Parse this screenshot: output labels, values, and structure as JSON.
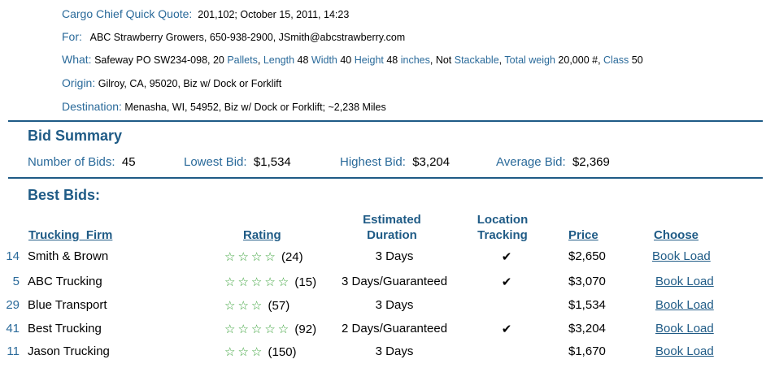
{
  "quote": {
    "label": "Cargo Chief Quick Quote:",
    "value": "201,102;  October 15, 2011, 14:23"
  },
  "for": {
    "label": "For:",
    "value": "ABC Strawberry Growers,  650-938-2900,  JSmith@abcstrawberry.com"
  },
  "what": {
    "label": "What:",
    "parts": [
      {
        "t": "Safeway  PO SW234-098, 20 ",
        "kw": false
      },
      {
        "t": "Pallets",
        "kw": true
      },
      {
        "t": ", ",
        "kw": false
      },
      {
        "t": "Length",
        "kw": true
      },
      {
        "t": " 48 ",
        "kw": false
      },
      {
        "t": "Width",
        "kw": true
      },
      {
        "t": " 40 ",
        "kw": false
      },
      {
        "t": "Height",
        "kw": true
      },
      {
        "t": " 48 ",
        "kw": false
      },
      {
        "t": "inches",
        "kw": true
      },
      {
        "t": ", Not ",
        "kw": false
      },
      {
        "t": "Stackable",
        "kw": true
      },
      {
        "t": ", ",
        "kw": false
      },
      {
        "t": "Total weigh",
        "kw": true
      },
      {
        "t": " 20,000 #, ",
        "kw": false
      },
      {
        "t": "Class",
        "kw": true
      },
      {
        "t": " 50",
        "kw": false
      }
    ]
  },
  "origin": {
    "label": "Origin:",
    "value": "Gilroy,  CA, 95020,  Biz w/ Dock or Forklift"
  },
  "destination": {
    "label": "Destination:",
    "value": "Menasha,  WI, 54952,  Biz w/ Dock or Forklift; ~2,238 Miles"
  },
  "bid_summary": {
    "title": "Bid Summary",
    "number_label": "Number of Bids:",
    "number_value": "45",
    "lowest_label": "Lowest Bid:",
    "lowest_value": "$1,534",
    "highest_label": "Highest Bid:",
    "highest_value": "$3,204",
    "average_label": "Average Bid:",
    "average_value": "$2,369"
  },
  "best_bids": {
    "title": "Best Bids:",
    "columns": {
      "firm": "Trucking  Firm",
      "rating": "Rating",
      "duration_1": "Estimated",
      "duration_2": "Duration",
      "tracking_1": "Location",
      "tracking_2": "Tracking",
      "price": "Price",
      "choose": "Choose"
    },
    "rows": [
      {
        "rank": "14",
        "firm": "Smith & Brown",
        "stars": 4,
        "reviews": "(24)",
        "duration": "3 Days",
        "tracking": "✔",
        "price": "$2,650",
        "action": "Book Load"
      },
      {
        "rank": "5",
        "firm": "ABC Trucking",
        "stars": 5,
        "reviews": "(15)",
        "duration": "3 Days/Guaranteed",
        "tracking": "✔",
        "price": "$3,070",
        "action": "Book Load"
      },
      {
        "rank": "29",
        "firm": "Blue Transport",
        "stars": 3,
        "reviews": "(57)",
        "duration": "3 Days",
        "tracking": "",
        "price": "$1,534",
        "action": "Book Load"
      },
      {
        "rank": "41",
        "firm": "Best Trucking",
        "stars": 5,
        "reviews": "(92)",
        "duration": "2 Days/Guaranteed",
        "tracking": "✔",
        "price": "$3,204",
        "action": "Book Load"
      },
      {
        "rank": "11",
        "firm": "Jason Trucking",
        "stars": 3,
        "reviews": "(150)",
        "duration": "3 Days",
        "tracking": "",
        "price": "$1,670",
        "action": "Book Load"
      }
    ]
  },
  "colors": {
    "label": "#2a6a9a",
    "heading": "#1f5b86",
    "star": "#3aa23a"
  }
}
